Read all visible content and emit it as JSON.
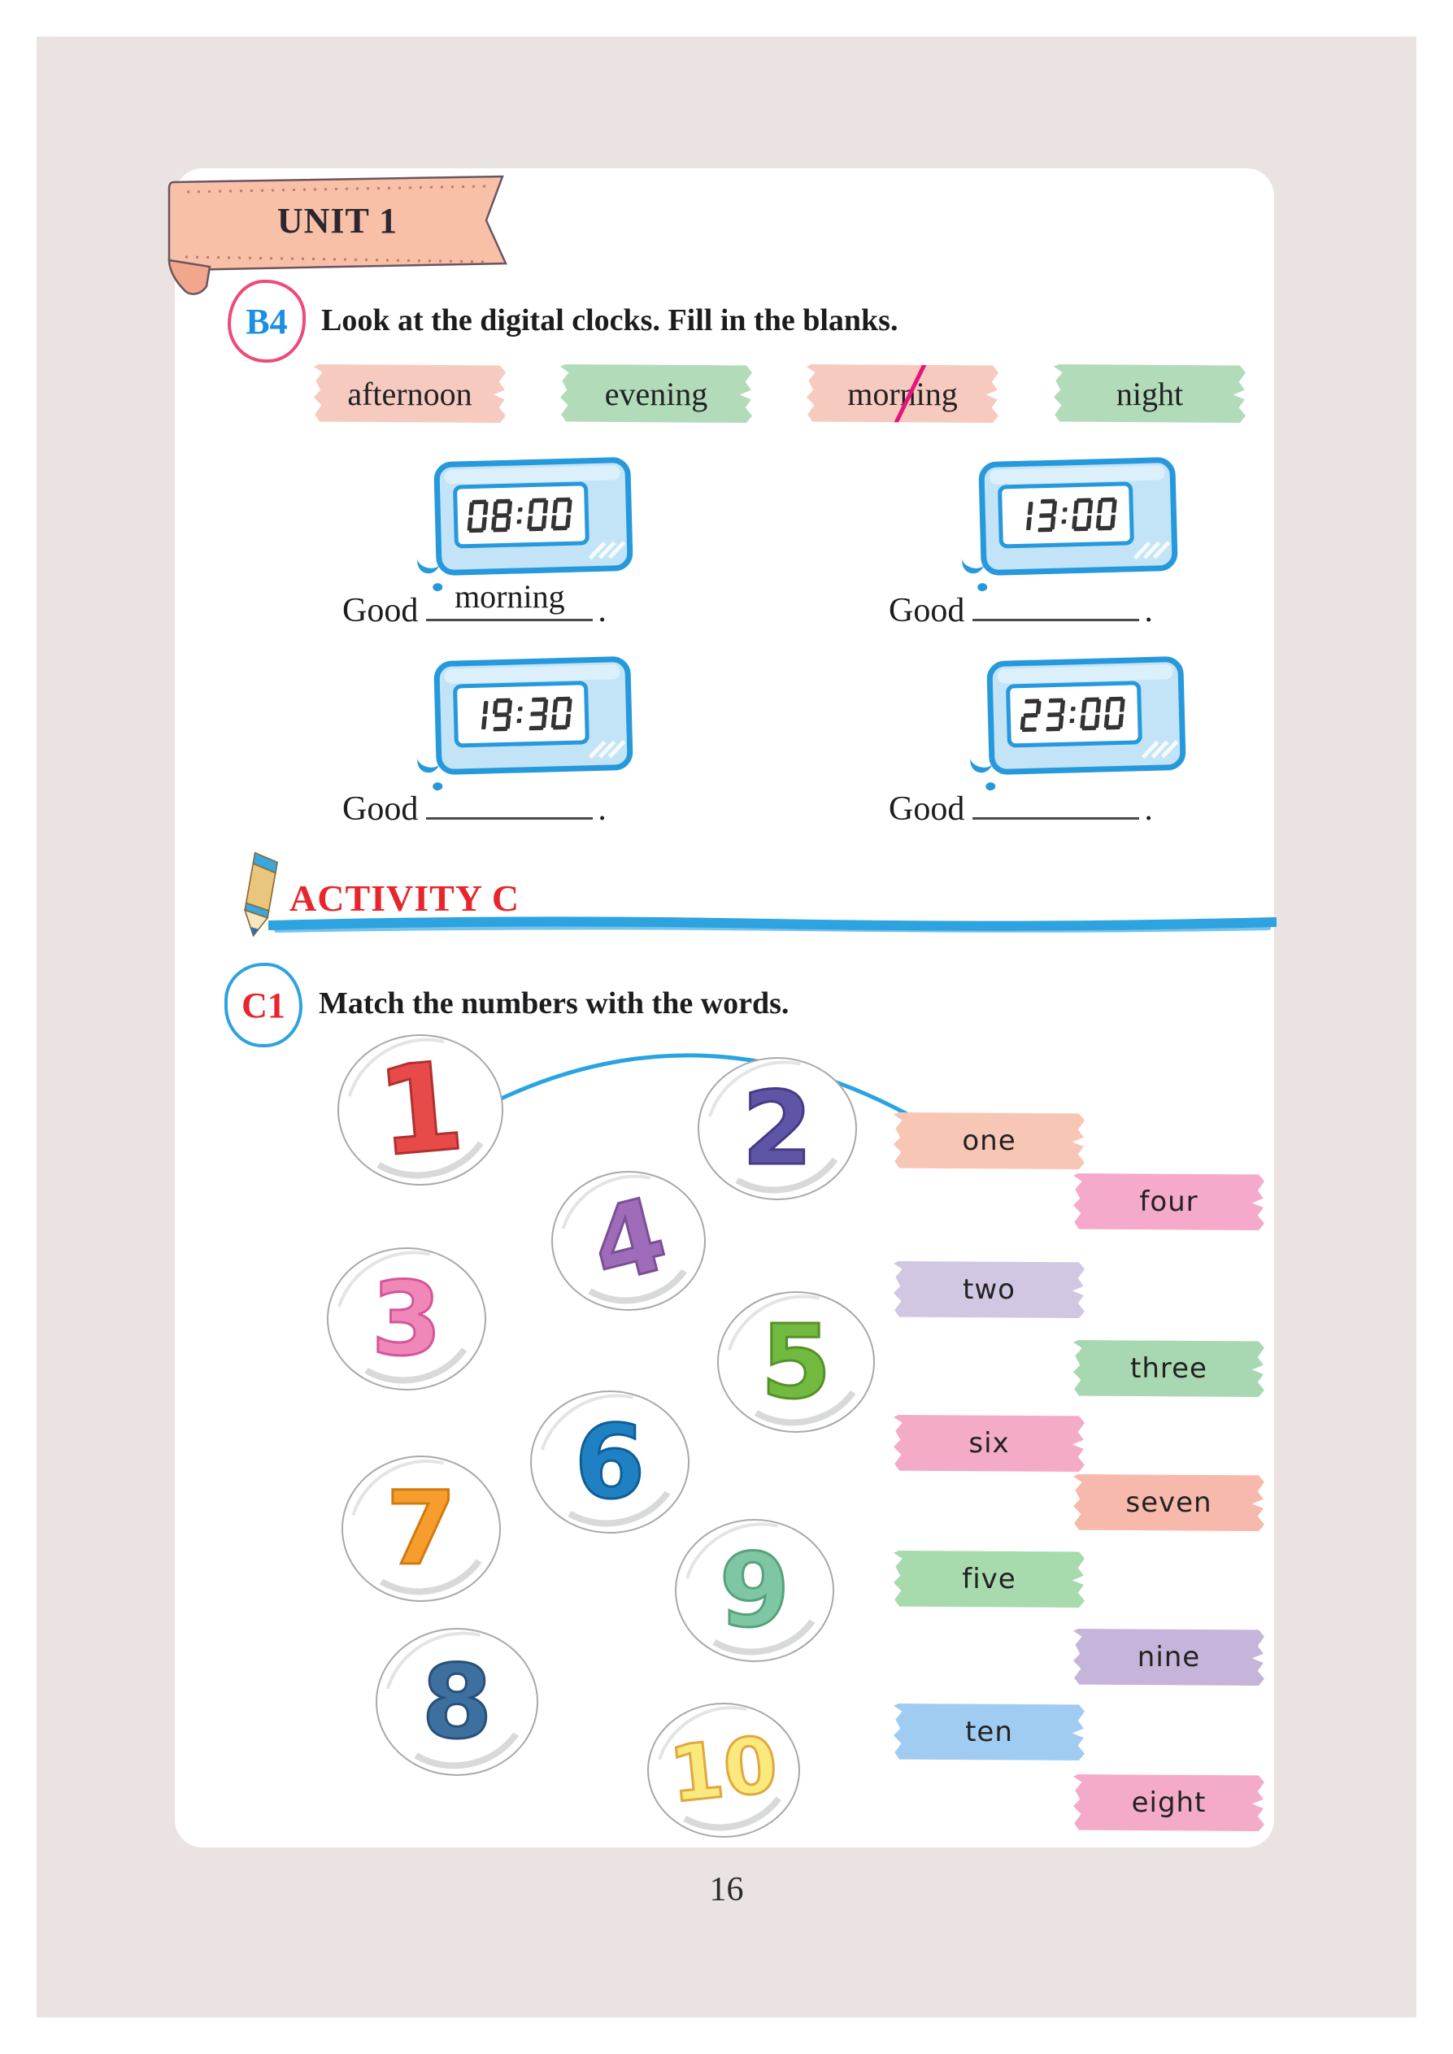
{
  "page": {
    "unit": "UNIT 1",
    "number": "16"
  },
  "b4": {
    "badge": "B4",
    "instruction": "Look at the digital clocks. Fill in the blanks.",
    "word_bank": [
      {
        "word": "afternoon",
        "color": "#f7cabf",
        "crossed": false
      },
      {
        "word": "evening",
        "color": "#b2dbba",
        "crossed": false
      },
      {
        "word": "morning",
        "color": "#f7cabf",
        "crossed": true
      },
      {
        "word": "night",
        "color": "#b2dbba",
        "crossed": false
      }
    ],
    "strike_color": "#e5147d",
    "blank_prefix": "Good",
    "period": ".",
    "clocks": [
      {
        "time": "08:00",
        "answer": "morning"
      },
      {
        "time": "13:00",
        "answer": ""
      },
      {
        "time": "19:30",
        "answer": ""
      },
      {
        "time": "23:00",
        "answer": ""
      }
    ],
    "clock_body_color": "#c3e4f7",
    "clock_outline_color": "#2699dc",
    "lcd_digit_color": "#333333"
  },
  "activity": {
    "title": "ACTIVITY C",
    "accent": "#e8252a",
    "line_color": "#2da3e0"
  },
  "c1": {
    "badge": "C1",
    "instruction": "Match the numbers with the words.",
    "arrow_color": "#2aa3e2",
    "numbers": [
      {
        "value": "1",
        "color": "#e84a4a",
        "outline": "#b03030"
      },
      {
        "value": "2",
        "color": "#5f55a7",
        "outline": "#453c85"
      },
      {
        "value": "3",
        "color": "#f087b9",
        "outline": "#d5559a"
      },
      {
        "value": "4",
        "color": "#9e6cb8",
        "outline": "#7b4f96"
      },
      {
        "value": "5",
        "color": "#71b93f",
        "outline": "#559127"
      },
      {
        "value": "6",
        "color": "#1f81c3",
        "outline": "#0f5e96"
      },
      {
        "value": "7",
        "color": "#f79d2d",
        "outline": "#d07a10"
      },
      {
        "value": "8",
        "color": "#3d709f",
        "outline": "#27517a"
      },
      {
        "value": "9",
        "color": "#7fc7a4",
        "outline": "#57a17d"
      },
      {
        "value": "10",
        "color": "#fae97d",
        "outline": "#e0a83e"
      }
    ],
    "words": [
      {
        "word": "one",
        "color": "#f8c6b5"
      },
      {
        "word": "four",
        "color": "#f5aacb"
      },
      {
        "word": "two",
        "color": "#d1c7e3"
      },
      {
        "word": "three",
        "color": "#a8d8b2"
      },
      {
        "word": "six",
        "color": "#f4abc8"
      },
      {
        "word": "seven",
        "color": "#f7b9ac"
      },
      {
        "word": "five",
        "color": "#a7daad"
      },
      {
        "word": "nine",
        "color": "#c6b5da"
      },
      {
        "word": "ten",
        "color": "#a1ccf2"
      },
      {
        "word": "eight",
        "color": "#f4abca"
      }
    ]
  }
}
